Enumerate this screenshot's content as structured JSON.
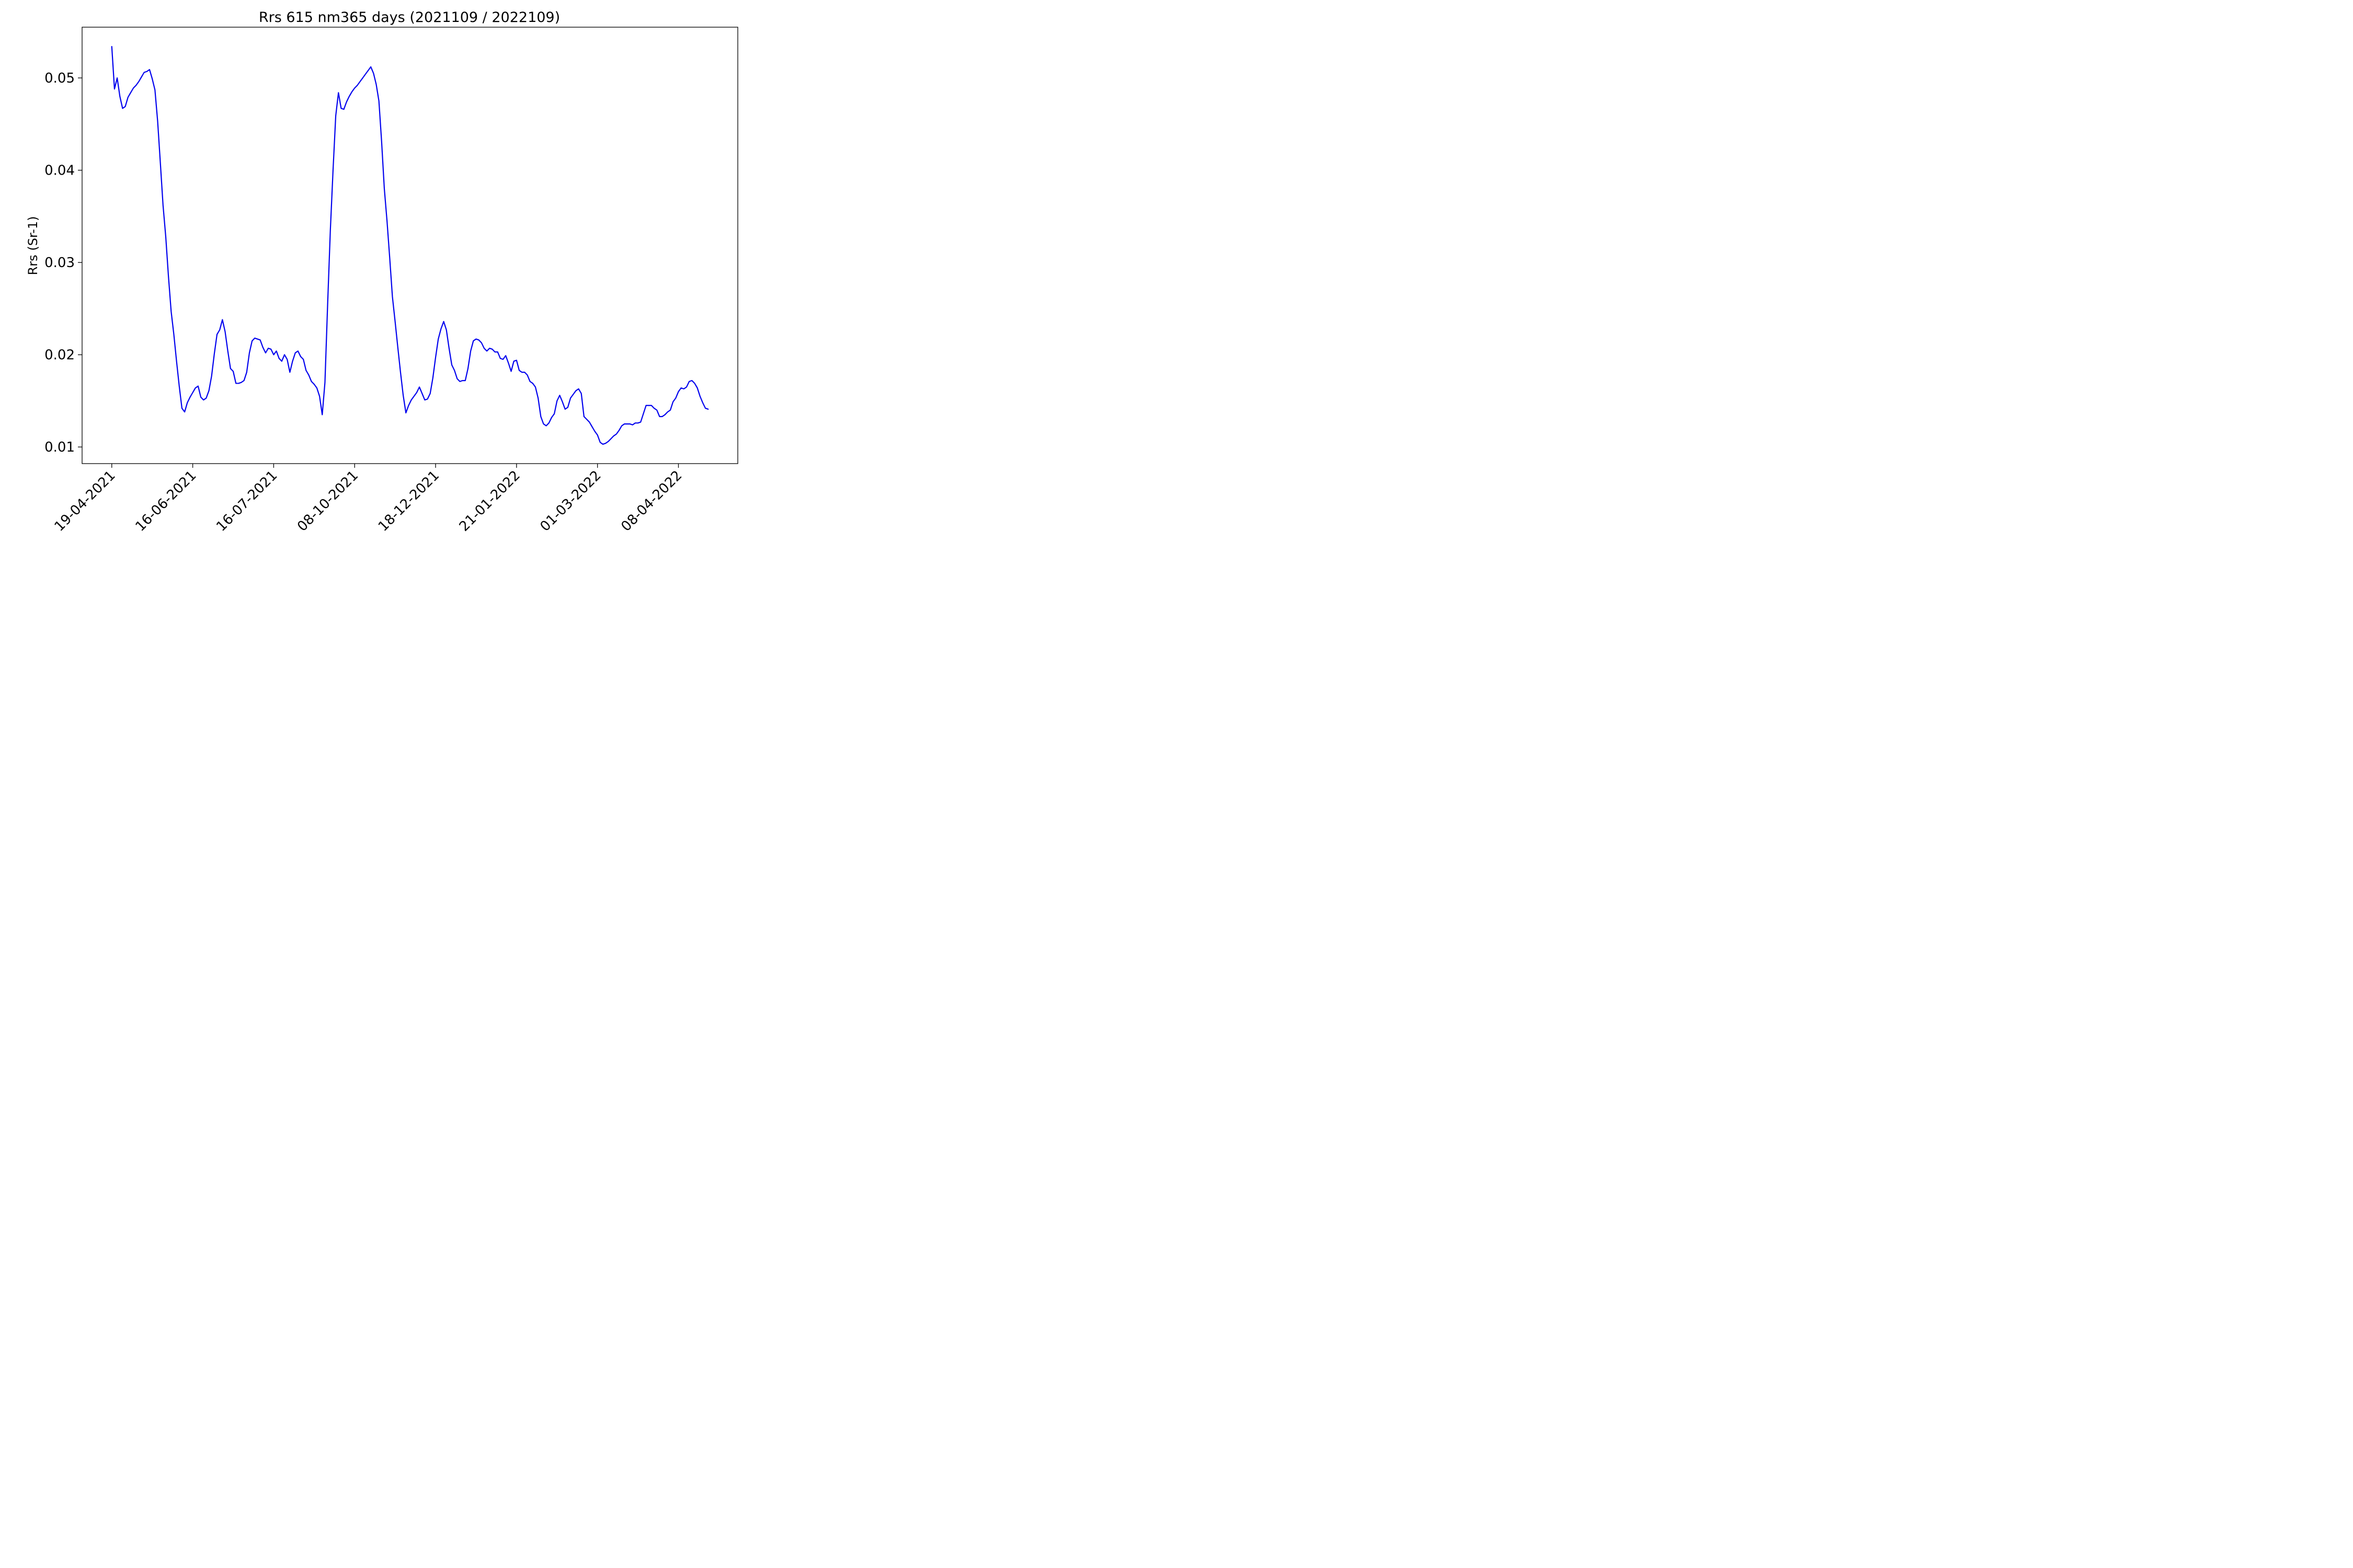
{
  "chart_data": {
    "type": "line",
    "title": "Rrs 615 nm365 days (2021109 / 2022109)",
    "ylabel": "Rrs (Sr-1)",
    "xlabel": "",
    "ylim": [
      0.0082,
      0.0555
    ],
    "yticks": [
      0.01,
      0.02,
      0.03,
      0.04,
      0.05
    ],
    "ytick_labels": [
      "0.01",
      "0.02",
      "0.03",
      "0.04",
      "0.05"
    ],
    "xticks": [
      {
        "label": "19-04-2021",
        "index": 0
      },
      {
        "label": "16-06-2021",
        "index": 30
      },
      {
        "label": "16-07-2021",
        "index": 60
      },
      {
        "label": "08-10-2021",
        "index": 90
      },
      {
        "label": "18-12-2021",
        "index": 120
      },
      {
        "label": "21-01-2022",
        "index": 150
      },
      {
        "label": "01-03-2022",
        "index": 180
      },
      {
        "label": "08-04-2022",
        "index": 210
      }
    ],
    "xlim": [
      -11,
      232
    ],
    "grid": false,
    "line_color": "#0000ee",
    "series": [
      {
        "values": [
          0.0534,
          0.0488,
          0.05,
          0.048,
          0.0467,
          0.0469,
          0.0479,
          0.0484,
          0.0489,
          0.0492,
          0.0496,
          0.0501,
          0.0506,
          0.0507,
          0.0509,
          0.0499,
          0.0487,
          0.0453,
          0.0408,
          0.0362,
          0.0328,
          0.0285,
          0.0247,
          0.0222,
          0.0193,
          0.0166,
          0.0142,
          0.0138,
          0.0148,
          0.0154,
          0.0159,
          0.0164,
          0.0166,
          0.0154,
          0.0151,
          0.0153,
          0.0161,
          0.0177,
          0.0201,
          0.0222,
          0.0227,
          0.0238,
          0.0225,
          0.0204,
          0.0185,
          0.0182,
          0.0169,
          0.0169,
          0.017,
          0.0172,
          0.0181,
          0.0202,
          0.0215,
          0.0218,
          0.0217,
          0.0216,
          0.0208,
          0.0202,
          0.0207,
          0.0206,
          0.02,
          0.0204,
          0.0196,
          0.0193,
          0.02,
          0.0195,
          0.0181,
          0.0193,
          0.0202,
          0.0204,
          0.0198,
          0.0195,
          0.0183,
          0.0178,
          0.0171,
          0.0168,
          0.0164,
          0.0155,
          0.0135,
          0.017,
          0.0255,
          0.0335,
          0.04,
          0.0459,
          0.0484,
          0.0467,
          0.0466,
          0.0474,
          0.048,
          0.0485,
          0.0489,
          0.0492,
          0.0496,
          0.05,
          0.0504,
          0.0508,
          0.0512,
          0.0505,
          0.0493,
          0.0475,
          0.0431,
          0.038,
          0.0345,
          0.0305,
          0.0263,
          0.0236,
          0.0208,
          0.0181,
          0.0156,
          0.0137,
          0.0145,
          0.0151,
          0.0155,
          0.0159,
          0.0165,
          0.0158,
          0.0151,
          0.0152,
          0.0158,
          0.0175,
          0.0197,
          0.0217,
          0.0228,
          0.0236,
          0.0227,
          0.0207,
          0.0189,
          0.0183,
          0.0174,
          0.0171,
          0.0172,
          0.0172,
          0.0185,
          0.0204,
          0.0215,
          0.0217,
          0.0216,
          0.0213,
          0.0207,
          0.0204,
          0.0207,
          0.0206,
          0.0203,
          0.0203,
          0.0196,
          0.0195,
          0.0199,
          0.0191,
          0.0182,
          0.0193,
          0.0194,
          0.0183,
          0.0181,
          0.0181,
          0.0178,
          0.0171,
          0.0169,
          0.0165,
          0.0153,
          0.0133,
          0.0125,
          0.0123,
          0.0126,
          0.0132,
          0.0136,
          0.015,
          0.0156,
          0.0149,
          0.0141,
          0.0143,
          0.0153,
          0.0157,
          0.0161,
          0.0163,
          0.0158,
          0.0133,
          0.013,
          0.0127,
          0.0122,
          0.0117,
          0.0113,
          0.0105,
          0.0103,
          0.0104,
          0.0106,
          0.0109,
          0.0112,
          0.0114,
          0.0118,
          0.0123,
          0.0125,
          0.0125,
          0.0125,
          0.0124,
          0.0126,
          0.0126,
          0.0127,
          0.0136,
          0.0145,
          0.0145,
          0.0145,
          0.0142,
          0.014,
          0.0133,
          0.0133,
          0.0135,
          0.0138,
          0.014,
          0.0149,
          0.0153,
          0.016,
          0.0164,
          0.0163,
          0.0165,
          0.0171,
          0.0172,
          0.0169,
          0.0164,
          0.0155,
          0.0148,
          0.0142,
          0.0141
        ]
      }
    ]
  }
}
